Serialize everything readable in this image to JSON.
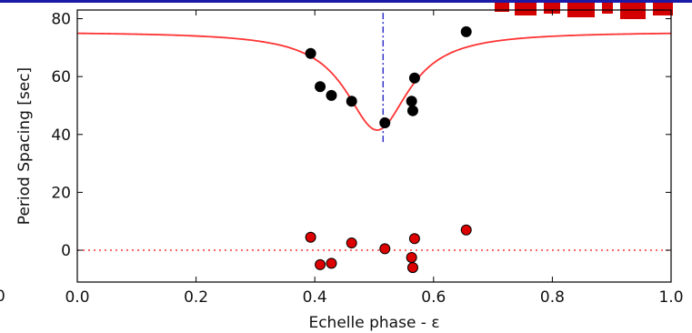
{
  "chart_data": {
    "type": "scatter",
    "title": "",
    "xlabel": "Echelle phase - ε",
    "ylabel": "Period Spacing [sec]",
    "xlim": [
      0.0,
      1.0
    ],
    "ylim": [
      -11,
      83
    ],
    "x_ticks": [
      0.0,
      0.2,
      0.4,
      0.6,
      0.8,
      1.0
    ],
    "x_tick_labels": [
      "0.0",
      "0.2",
      "0.4",
      "0.6",
      "0.8",
      "1.0"
    ],
    "y_ticks": [
      0,
      20,
      40,
      60,
      80
    ],
    "y_tick_labels": [
      "0",
      "20",
      "40",
      "60",
      "80"
    ],
    "grid": false,
    "colors": {
      "model": "#ff3333",
      "period_points": "#000000",
      "residual_points": "#dd0000",
      "phase_marker": "#3333cc",
      "zero_line": "#ff3333",
      "title_bar": "#1a1aa6",
      "title_fragment": "#d40000"
    },
    "series": [
      {
        "kind": "scatter",
        "x": [
          0.393,
          0.409,
          0.428,
          0.462,
          0.518,
          0.563,
          0.565,
          0.568,
          0.655
        ],
        "y": [
          68.0,
          56.5,
          53.5,
          51.5,
          44.0,
          51.5,
          48.2,
          59.5,
          75.5
        ]
      },
      {
        "kind": "scatter",
        "x": [
          0.393,
          0.409,
          0.428,
          0.462,
          0.518,
          0.563,
          0.565,
          0.568,
          0.655
        ],
        "y": [
          4.5,
          -5.0,
          -4.5,
          2.5,
          0.5,
          -2.5,
          -6.0,
          4.0,
          7.0
        ]
      },
      {
        "kind": "line",
        "model": {
          "baseline": 75.5,
          "depth": 34.0,
          "center": 0.505,
          "width": 0.065
        }
      }
    ],
    "annotations": [
      {
        "kind": "vertical-dashdot-line",
        "x": 0.515,
        "y_range": [
          36.5,
          82
        ]
      },
      {
        "kind": "horizontal-dotted-line",
        "y": 0
      }
    ]
  }
}
